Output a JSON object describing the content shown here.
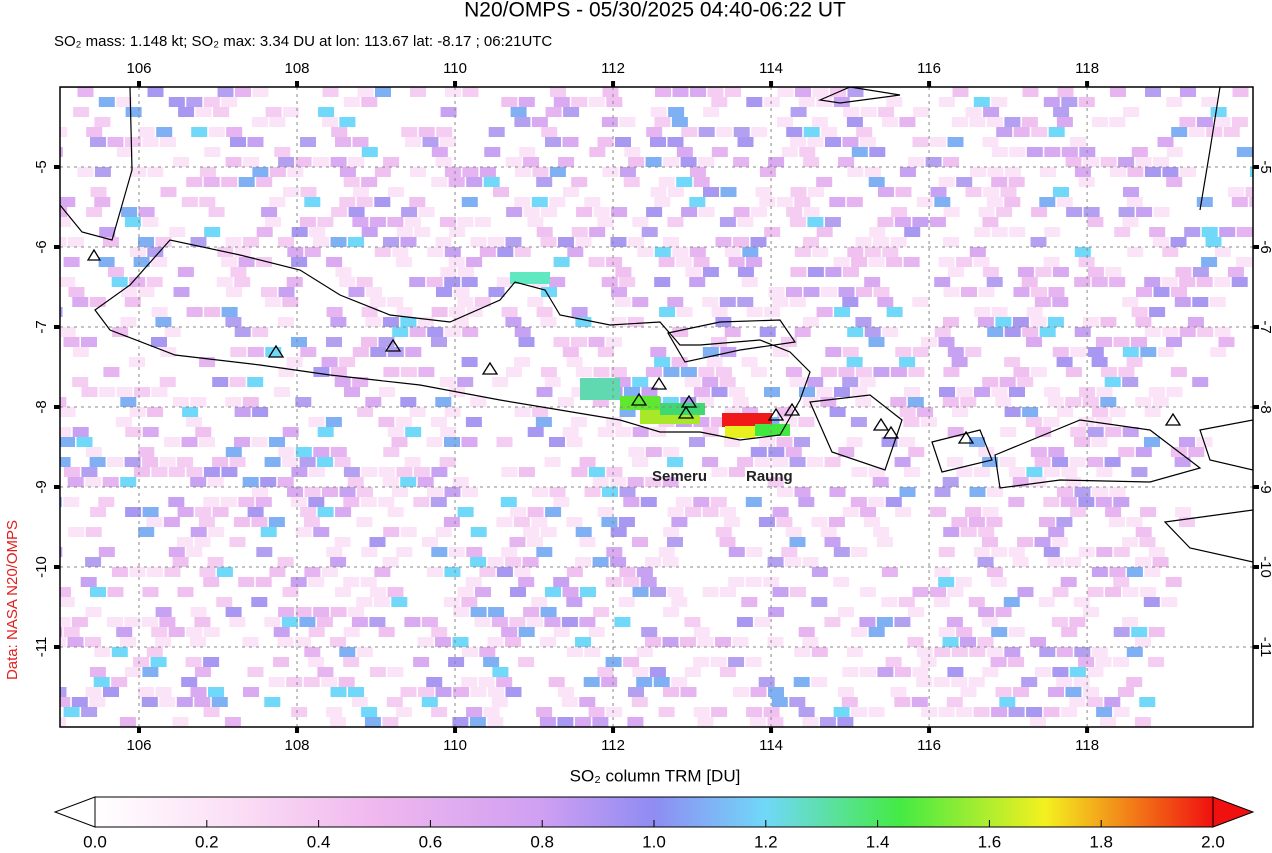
{
  "header": {
    "title": "N20/OMPS - 05/30/2025 04:40-06:22 UT",
    "subtitle": "SO₂ mass: 1.148 kt; SO₂ max: 3.34 DU at lon: 113.67 lat: -8.17 ; 06:21UTC"
  },
  "map": {
    "xlim": [
      105,
      120.1
    ],
    "ylim": [
      -12,
      -4
    ],
    "xticks": [
      106,
      108,
      110,
      112,
      114,
      116,
      118
    ],
    "yticks": [
      -5,
      -6,
      -7,
      -8,
      -9,
      -10,
      -11
    ],
    "grid": true,
    "labels": [
      "Semeru",
      "Raung"
    ]
  },
  "colorbar": {
    "title": "SO₂ column TRM [DU]",
    "range": [
      0,
      2
    ],
    "ticks": [
      {
        "value": 0,
        "label": "0.0"
      },
      {
        "value": 0.2,
        "label": "0.2"
      },
      {
        "value": 0.4,
        "label": "0.4"
      },
      {
        "value": 0.6,
        "label": "0.6"
      },
      {
        "value": 0.8,
        "label": "0.8"
      },
      {
        "value": 1,
        "label": "1.0"
      },
      {
        "value": 1.2,
        "label": "1.2"
      },
      {
        "value": 1.4,
        "label": "1.4"
      },
      {
        "value": 1.6,
        "label": "1.6"
      },
      {
        "value": 1.8,
        "label": "1.8"
      },
      {
        "value": 2,
        "label": "2.0"
      }
    ]
  },
  "credit": "Data: NASA N20/OMPS"
}
